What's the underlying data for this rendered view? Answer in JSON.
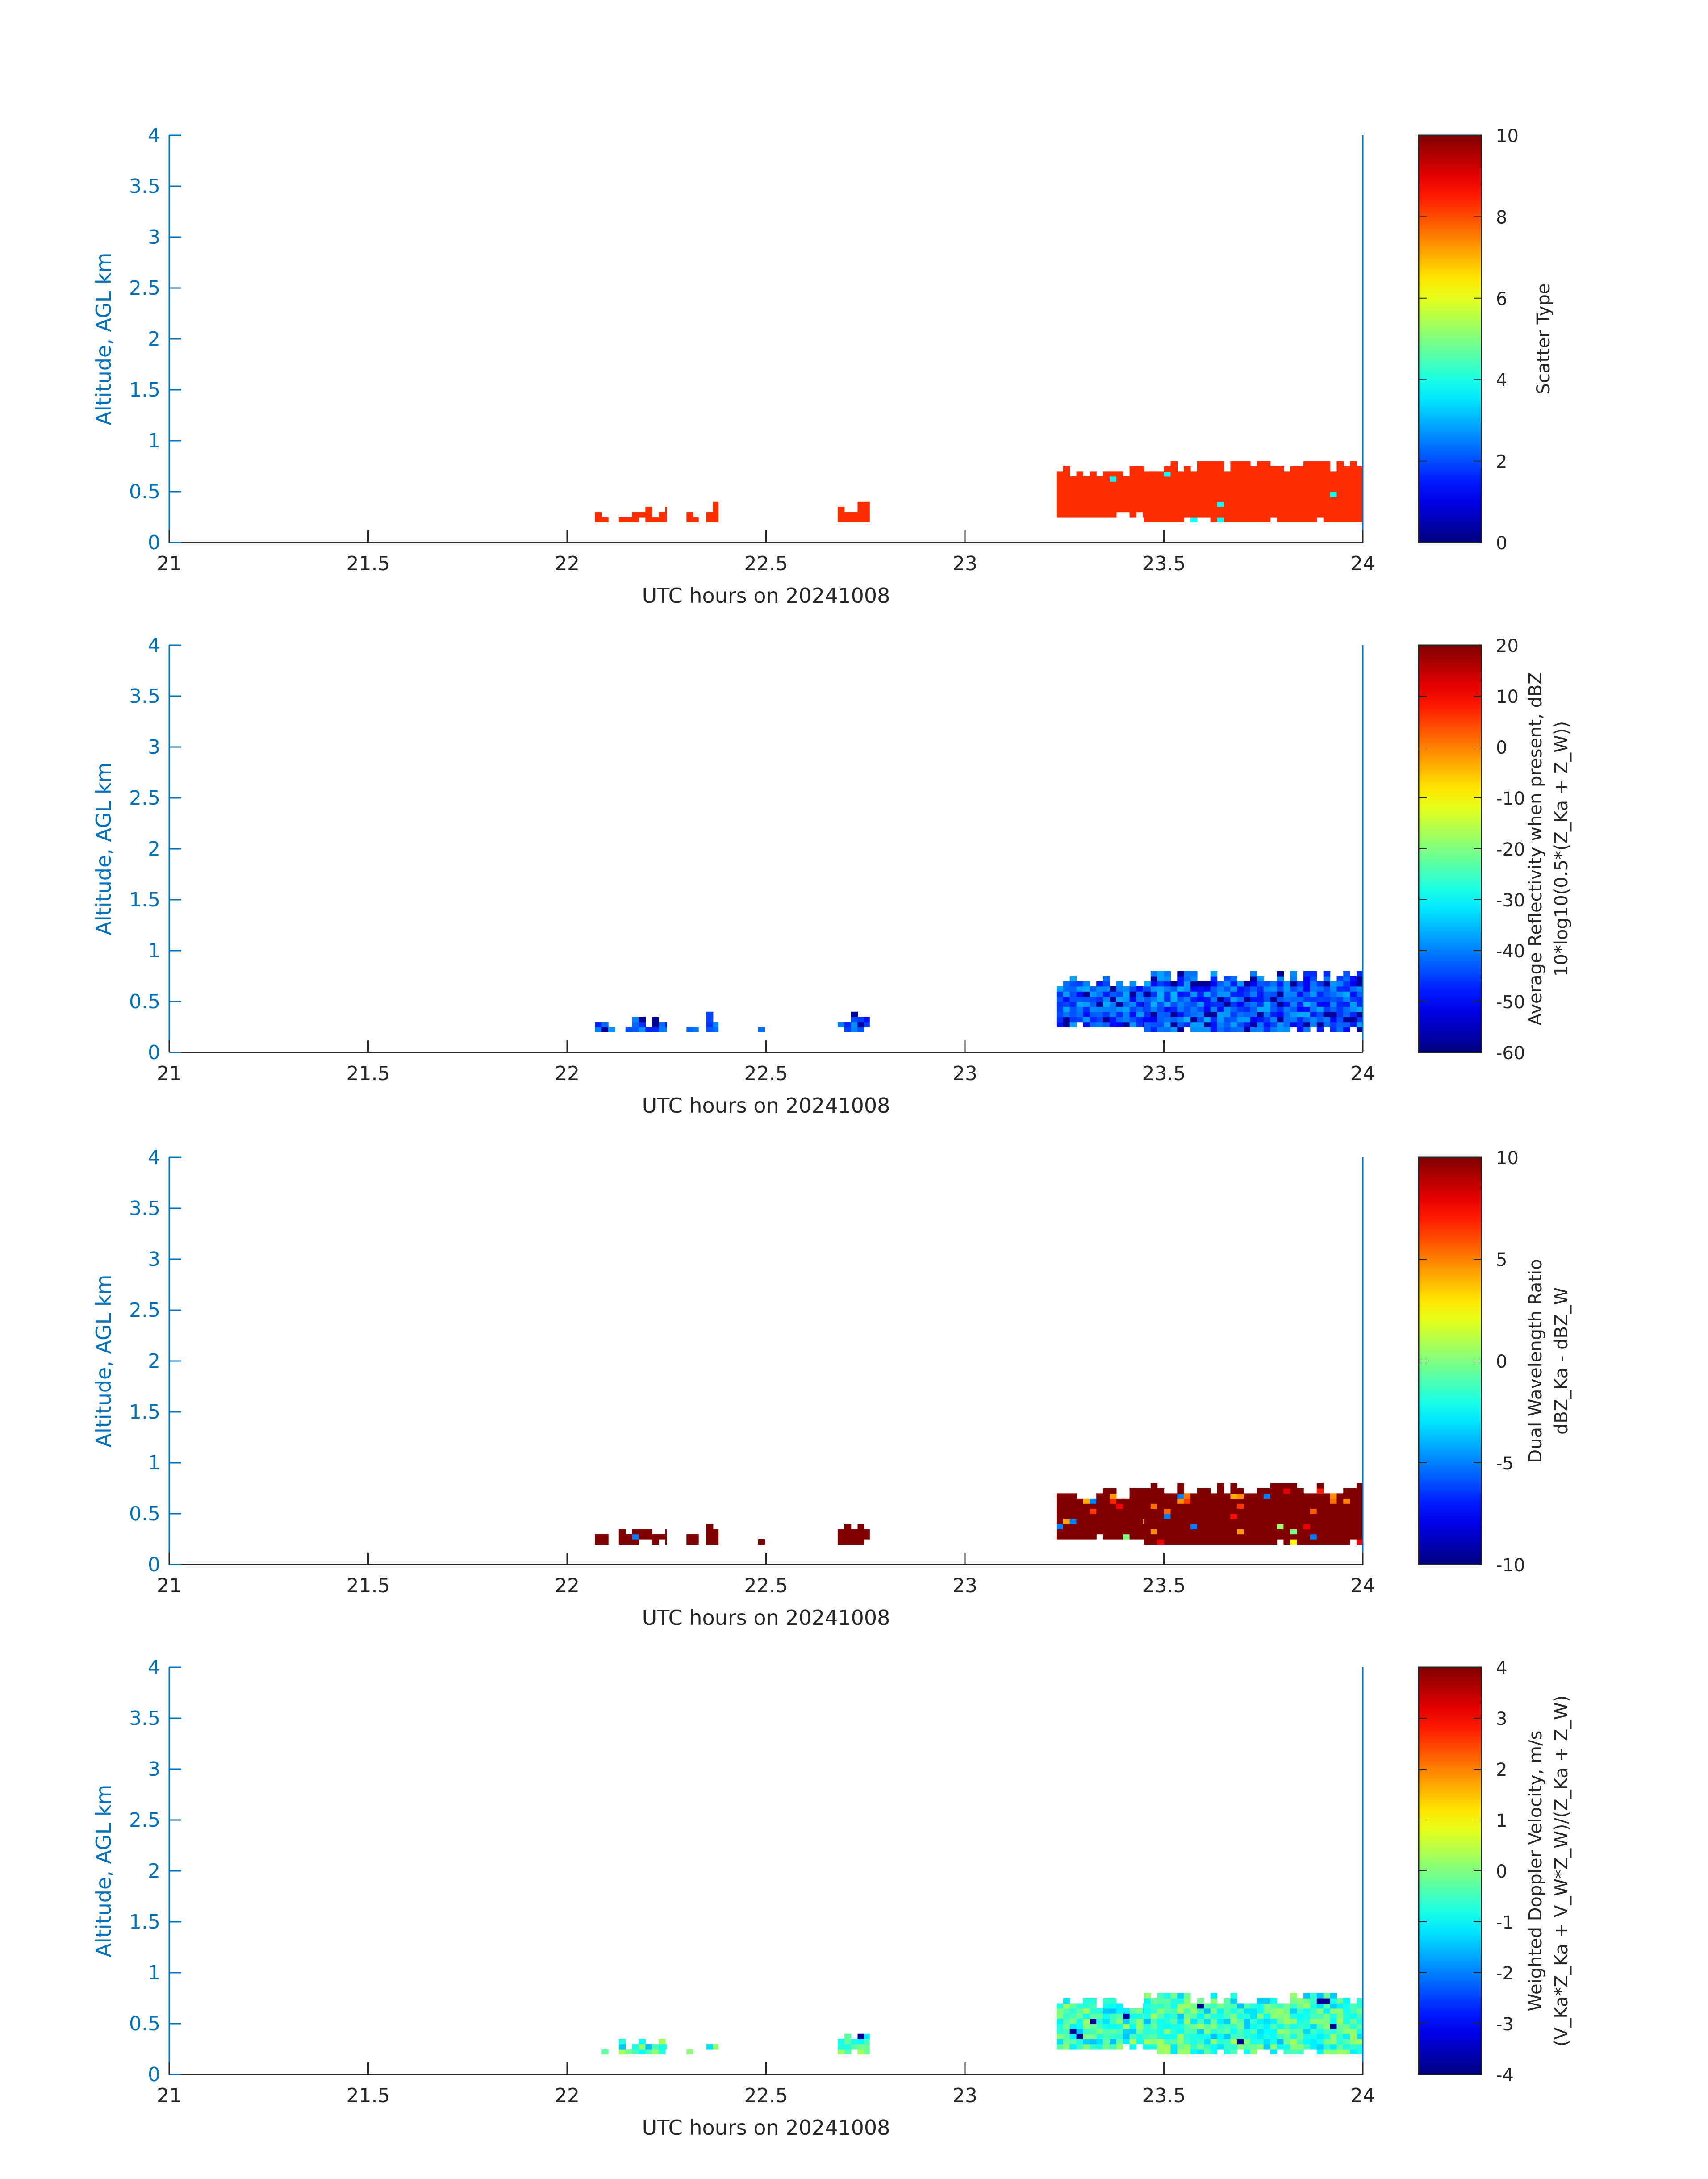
{
  "colors": {
    "axis_left": "#0072BD",
    "axis_bottom": "#262626",
    "colorbar_frame": "#262626",
    "background": "#ffffff"
  },
  "chart_data": [
    {
      "type": "heatmap",
      "xlabel": "UTC hours on 20241008",
      "ylabel": "Altitude, AGL km",
      "xlim": [
        21,
        24
      ],
      "ylim": [
        0,
        4
      ],
      "xticks": [
        "21",
        "21.5",
        "22",
        "22.5",
        "23",
        "23.5",
        "24"
      ],
      "yticks": [
        "0",
        "0.5",
        "1",
        "1.5",
        "2",
        "2.5",
        "3",
        "3.5",
        "4"
      ],
      "colormap": "jet",
      "clim": [
        0,
        10
      ],
      "colorbar_ticks": [
        "0",
        "2",
        "4",
        "6",
        "8",
        "10"
      ],
      "colorbar_label": "Scatter Type",
      "colorbar_label2": "",
      "field": "scatter",
      "grid": false
    },
    {
      "type": "heatmap",
      "xlabel": "UTC hours on 20241008",
      "ylabel": "Altitude, AGL km",
      "xlim": [
        21,
        24
      ],
      "ylim": [
        0,
        4
      ],
      "xticks": [
        "21",
        "21.5",
        "22",
        "22.5",
        "23",
        "23.5",
        "24"
      ],
      "yticks": [
        "0",
        "0.5",
        "1",
        "1.5",
        "2",
        "2.5",
        "3",
        "3.5",
        "4"
      ],
      "colormap": "jet",
      "clim": [
        -60,
        20
      ],
      "colorbar_ticks": [
        "-60",
        "-50",
        "-40",
        "-30",
        "-20",
        "-10",
        "0",
        "10",
        "20"
      ],
      "colorbar_label": "Average Reflectivity when present, dBZ",
      "colorbar_label2": "10*log10(0.5*(Z_Ka + Z_W))",
      "field": "reflectivity",
      "grid": false
    },
    {
      "type": "heatmap",
      "xlabel": "UTC hours on 20241008",
      "ylabel": "Altitude, AGL km",
      "xlim": [
        21,
        24
      ],
      "ylim": [
        0,
        4
      ],
      "xticks": [
        "21",
        "21.5",
        "22",
        "22.5",
        "23",
        "23.5",
        "24"
      ],
      "yticks": [
        "0",
        "0.5",
        "1",
        "1.5",
        "2",
        "2.5",
        "3",
        "3.5",
        "4"
      ],
      "colormap": "jet",
      "clim": [
        -10,
        10
      ],
      "colorbar_ticks": [
        "-10",
        "-5",
        "0",
        "5",
        "10"
      ],
      "colorbar_label": "Dual Wavelength Ratio",
      "colorbar_label2": "dBZ_Ka - dBZ_W",
      "field": "dwr",
      "grid": false
    },
    {
      "type": "heatmap",
      "xlabel": "UTC hours on 20241008",
      "ylabel": "Altitude, AGL km",
      "xlim": [
        21,
        24
      ],
      "ylim": [
        0,
        4
      ],
      "xticks": [
        "21",
        "21.5",
        "22",
        "22.5",
        "23",
        "23.5",
        "24"
      ],
      "yticks": [
        "0",
        "0.5",
        "1",
        "1.5",
        "2",
        "2.5",
        "3",
        "3.5",
        "4"
      ],
      "colormap": "jet",
      "clim": [
        -4,
        4
      ],
      "colorbar_ticks": [
        "-4",
        "-3",
        "-2",
        "-1",
        "0",
        "1",
        "2",
        "3",
        "4"
      ],
      "colorbar_label": "Weighted Doppler Velocity, m/s",
      "colorbar_label2": "(V_Ka*Z_Ka + V_W*Z_W)/(Z_Ka + Z_W)",
      "field": "velocity",
      "grid": false
    }
  ],
  "echo_cells": {
    "note_units": "x in UTC hours, y in km AGL",
    "cell_width_hours": 0.0167,
    "cell_height_km": 0.05,
    "segments": [
      {
        "x0": 22.07,
        "x1": 22.12,
        "bottom": 0.2,
        "top": 0.3
      },
      {
        "x0": 22.13,
        "x1": 22.25,
        "bottom": 0.2,
        "top": 0.35
      },
      {
        "x0": 22.3,
        "x1": 22.33,
        "bottom": 0.2,
        "top": 0.3
      },
      {
        "x0": 22.35,
        "x1": 22.38,
        "bottom": 0.2,
        "top": 0.4
      },
      {
        "x0": 22.48,
        "x1": 22.52,
        "bottom": 0.2,
        "top": 0.25
      },
      {
        "x0": 22.68,
        "x1": 22.76,
        "bottom": 0.2,
        "top": 0.4
      },
      {
        "x0": 23.23,
        "x1": 23.45,
        "bottom": 0.25,
        "top": 0.75
      },
      {
        "x0": 23.45,
        "x1": 24.0,
        "bottom": 0.2,
        "top": 0.8
      }
    ]
  }
}
